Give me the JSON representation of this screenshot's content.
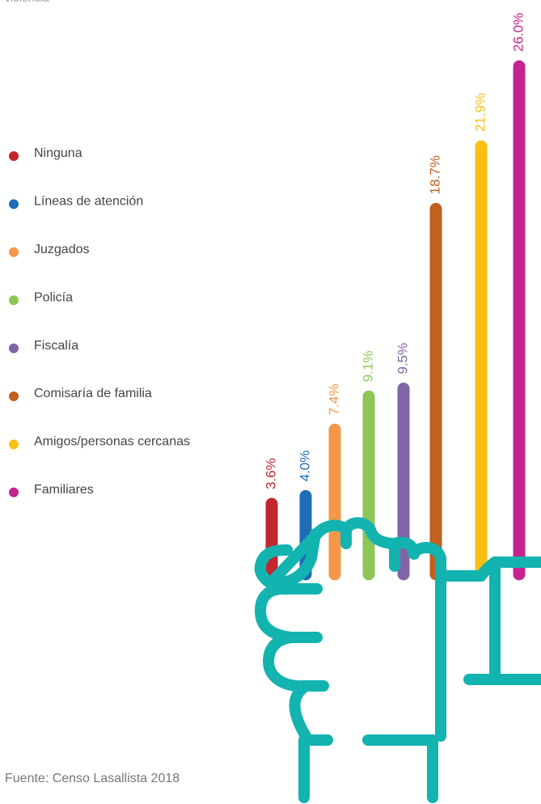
{
  "chart_data": {
    "type": "bar",
    "title": "violencia",
    "categories": [
      "Ninguna",
      "Líneas de atención",
      "Juzgados",
      "Policía",
      "Fiscalía",
      "Comisaría de familia",
      "Amigos/personas cercanas",
      "Familiares"
    ],
    "values": [
      3.6,
      4.0,
      7.4,
      9.1,
      9.5,
      18.7,
      21.9,
      26.0
    ],
    "value_labels": [
      "3.6%",
      "4.0%",
      "7.4%",
      "9.1%",
      "9.5%",
      "18.7%",
      "21.9%",
      "26.0%"
    ],
    "colors": [
      "#c4262e",
      "#1f6db5",
      "#f4974a",
      "#8dc657",
      "#8164a5",
      "#c1601f",
      "#f8c015",
      "#c42490"
    ],
    "source": "Fuente: Censo Lasallista 2018"
  }
}
